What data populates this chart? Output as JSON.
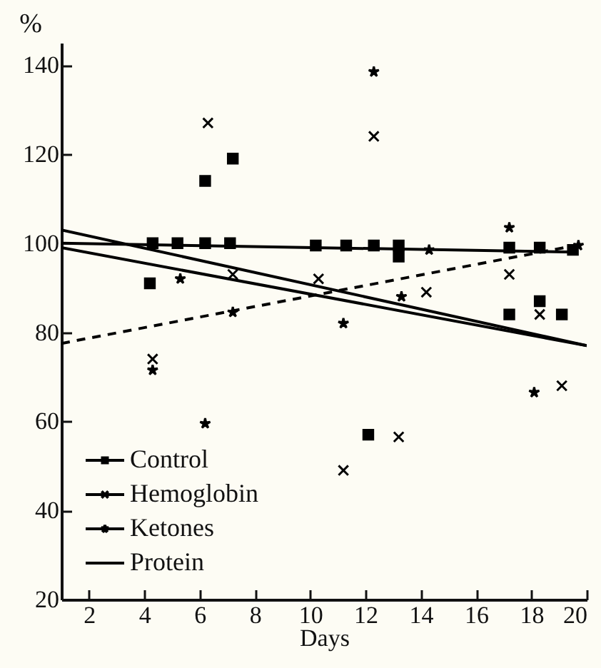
{
  "chart_data": {
    "type": "scatter",
    "xlabel": "Days",
    "ylabel": "%",
    "xlim": [
      1,
      20
    ],
    "ylim": [
      20,
      145
    ],
    "xticks": [
      2,
      4,
      6,
      8,
      10,
      12,
      14,
      16,
      18,
      20
    ],
    "yticks": [
      20,
      40,
      60,
      80,
      100,
      120,
      140
    ],
    "grid": false,
    "legend": "bottom left",
    "series": [
      {
        "name": "Control",
        "type": "scatter",
        "marker": "square",
        "color": "#000000",
        "x": [
          4.2,
          4.3,
          5.2,
          6.2,
          6.2,
          7.1,
          7.2,
          10.2,
          11.3,
          12.3,
          13.2,
          13.2,
          17.2,
          17.2,
          18.3,
          18.3,
          19.1,
          19.5,
          12.1
        ],
        "values": [
          91,
          100,
          100,
          100,
          114,
          100,
          119,
          99.5,
          99.5,
          99.5,
          99.5,
          97,
          99,
          84,
          99,
          87,
          84,
          98.5,
          57
        ]
      },
      {
        "name": "Hemoglobin",
        "type": "scatter",
        "marker": "cross",
        "color": "#000000",
        "x": [
          4.3,
          6.3,
          7.2,
          10.3,
          11.2,
          12.3,
          13.2,
          14.2,
          17.2,
          18.3,
          19.1
        ],
        "values": [
          74,
          127,
          93,
          92,
          49,
          124,
          56.5,
          89,
          93,
          84,
          68
        ]
      },
      {
        "name": "Ketones",
        "type": "scatter",
        "marker": "star",
        "color": "#000000",
        "x": [
          4.3,
          5.3,
          6.2,
          7.2,
          11.2,
          12.3,
          13.3,
          14.3,
          17.2,
          18.1,
          19.7
        ],
        "values": [
          71.5,
          92,
          59.5,
          84.5,
          82,
          138.5,
          88,
          98.5,
          103.5,
          66.5,
          99.5
        ]
      },
      {
        "type": "line",
        "line_style": "solid",
        "color": "#000000",
        "x": [
          1,
          19.6
        ],
        "values": [
          100,
          98
        ]
      },
      {
        "type": "line",
        "line_style": "solid",
        "color": "#000000",
        "x": [
          1,
          20
        ],
        "values": [
          103,
          77
        ]
      },
      {
        "type": "line",
        "line_style": "dashed",
        "color": "#000000",
        "x": [
          1,
          19.6
        ],
        "values": [
          77.5,
          99.5
        ]
      },
      {
        "name": "Protein",
        "type": "line",
        "line_style": "solid",
        "color": "#000000",
        "x": [
          1,
          20
        ],
        "values": [
          99,
          77
        ]
      }
    ]
  }
}
